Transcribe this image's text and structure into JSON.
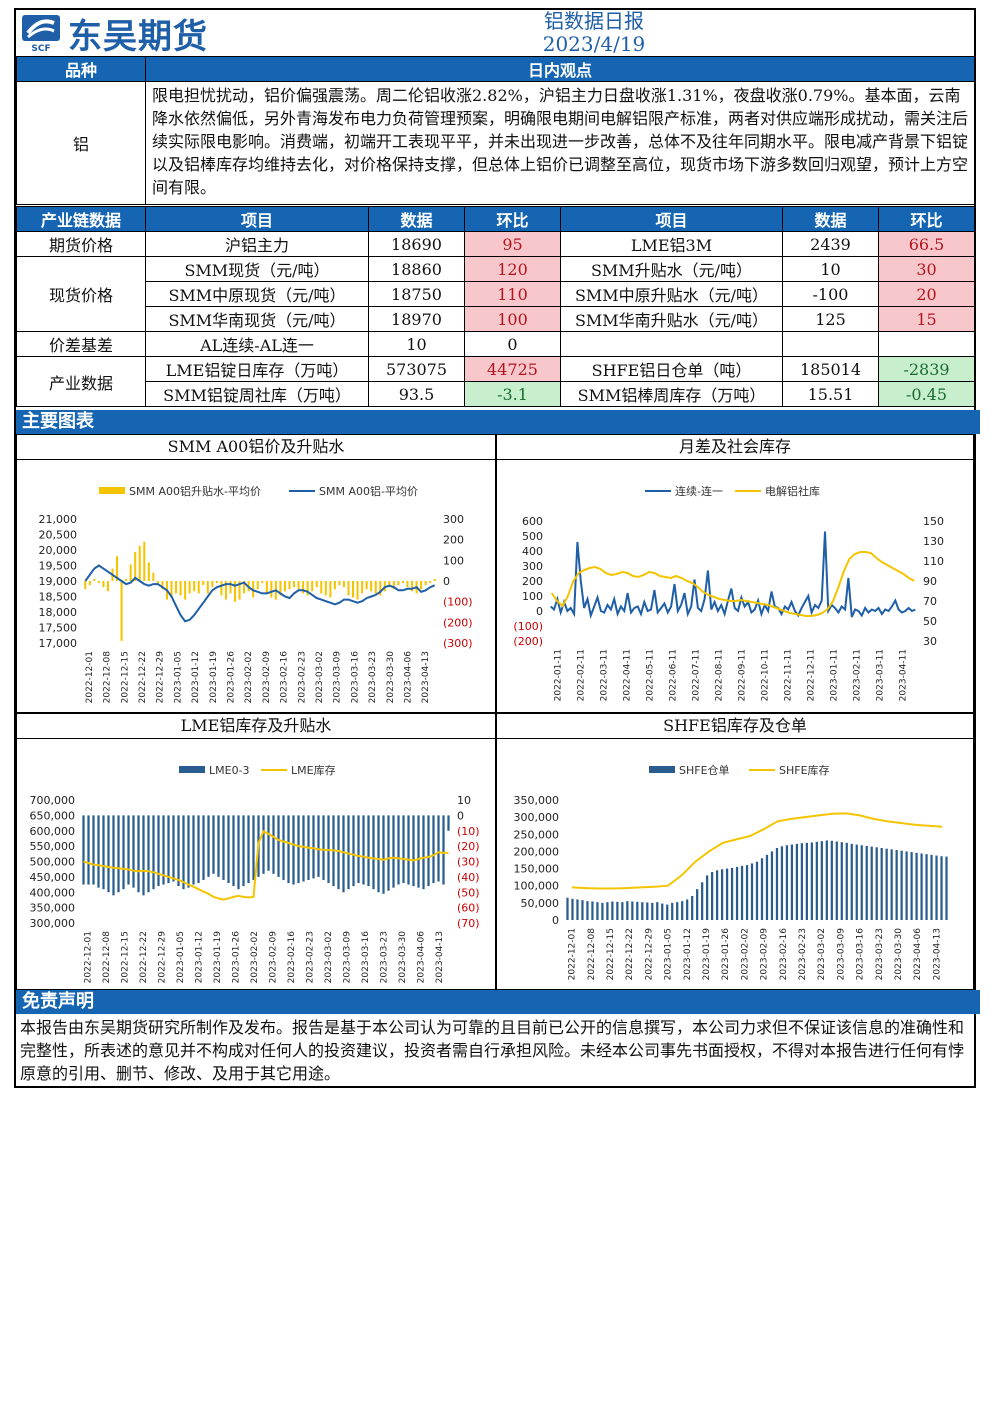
{
  "header": {
    "company": "东吴期货",
    "logo_sub": "SCF",
    "report_title": "铝数据日报",
    "report_date": "2023/4/19"
  },
  "view": {
    "col_variety": "品种",
    "col_view": "日内观点",
    "variety": "铝",
    "text": "限电担忧扰动，铝价偏强震荡。周二伦铝收涨2.82%，沪铝主力日盘收涨1.31%，夜盘收涨0.79%。基本面，云南降水依然偏低，另外青海发布电力负荷管理预案，明确限电期间电解铝限产标准，两者对供应端形成扰动，需关注后续实际限电影响。消费端，初端开工表现平平，并未出现进一步改善，总体不及往年同期水平。限电减产背景下铝锭以及铝棒库存均维持去化，对价格保持支撑，但总体上铝价已调整至高位，现货市场下游多数回归观望，预计上方空间有限。"
  },
  "table": {
    "headers": [
      "产业链数据",
      "项目",
      "数据",
      "环比",
      "项目",
      "数据",
      "环比"
    ],
    "rows": [
      {
        "group": "期货价格",
        "span": 1,
        "item1": "沪铝主力",
        "val1": "18690",
        "chg1": "95",
        "s1": "pos",
        "item2": "LME铝3M",
        "val2": "2439",
        "chg2": "66.5",
        "s2": "pos"
      },
      {
        "group": "现货价格",
        "span": 3,
        "item1": "SMM现货（元/吨）",
        "val1": "18860",
        "chg1": "120",
        "s1": "pos",
        "item2": "SMM升贴水（元/吨）",
        "val2": "10",
        "chg2": "30",
        "s2": "pos"
      },
      {
        "group": "",
        "span": 0,
        "item1": "SMM中原现货（元/吨）",
        "val1": "18750",
        "chg1": "110",
        "s1": "pos",
        "item2": "SMM中原升贴水（元/吨）",
        "val2": "-100",
        "chg2": "20",
        "s2": "pos"
      },
      {
        "group": "",
        "span": 0,
        "item1": "SMM华南现货（元/吨）",
        "val1": "18970",
        "chg1": "100",
        "s1": "pos",
        "item2": "SMM华南升贴水（元/吨）",
        "val2": "125",
        "chg2": "15",
        "s2": "pos"
      },
      {
        "group": "价差基差",
        "span": 1,
        "item1": "AL连续-AL连一",
        "val1": "10",
        "chg1": "0",
        "s1": "",
        "item2": "",
        "val2": "",
        "chg2": "",
        "s2": ""
      },
      {
        "group": "产业数据",
        "span": 2,
        "item1": "LME铝锭日库存（万吨）",
        "val1": "573075",
        "chg1": "44725",
        "s1": "pos",
        "item2": "SHFE铝日仓单（吨）",
        "val2": "185014",
        "chg2": "-2839",
        "s2": "neg"
      },
      {
        "group": "",
        "span": 0,
        "item1": "SMM铝锭周社库（万吨）",
        "val1": "93.5",
        "chg1": "-3.1",
        "s1": "neg",
        "item2": "SMM铝棒周库存（万吨）",
        "val2": "15.51",
        "chg2": "-0.45",
        "s2": "neg"
      }
    ]
  },
  "charts_section_title": "主要图表",
  "chart_data": [
    {
      "type": "line",
      "title": "SMM A00铝价及升贴水",
      "series": [
        {
          "name": "SMM A00铝升贴水-平均价",
          "kind": "bar",
          "axis": "right",
          "color": "#f5c400",
          "values": [
            -40,
            -20,
            10,
            -10,
            -30,
            -50,
            60,
            120,
            -290,
            10,
            80,
            140,
            170,
            190,
            90,
            40,
            -10,
            -40,
            -90,
            -80,
            -60,
            -70,
            -90,
            -60,
            -50,
            -60,
            -20,
            -60,
            -30,
            -10,
            -70,
            -90,
            -60,
            -100,
            -90,
            -60,
            -50,
            -80,
            -40,
            -10,
            -60,
            -80,
            -90,
            -70,
            -50,
            -40,
            -30,
            -40,
            -60,
            -70,
            -50,
            -30,
            -60,
            -70,
            -80,
            -40,
            -20,
            -30,
            -70,
            -80,
            -90,
            -60,
            -40,
            -50,
            -60,
            -70,
            -50,
            -30,
            -40,
            -20,
            -10,
            -30,
            -50,
            -60,
            -40,
            -20,
            -10,
            10
          ]
        },
        {
          "name": "SMM A00铝-平均价",
          "kind": "line",
          "axis": "left",
          "color": "#1f5fa8",
          "values": [
            19000,
            19200,
            19400,
            19500,
            19400,
            19300,
            19200,
            19100,
            19000,
            18900,
            18950,
            19100,
            19000,
            18900,
            18850,
            18900,
            18900,
            18800,
            18700,
            18500,
            18200,
            17900,
            17700,
            17750,
            17900,
            18100,
            18300,
            18500,
            18700,
            18800,
            18850,
            18900,
            18900,
            18850,
            18900,
            18950,
            18800,
            18700,
            18650,
            18600,
            18600,
            18650,
            18700,
            18600,
            18500,
            18450,
            18600,
            18700,
            18700,
            18650,
            18550,
            18450,
            18400,
            18350,
            18300,
            18250,
            18300,
            18400,
            18400,
            18350,
            18300,
            18350,
            18450,
            18500,
            18550,
            18650,
            18800,
            18850,
            18800,
            18700,
            18700,
            18750,
            18750,
            18800,
            18650,
            18700,
            18800,
            18860
          ]
        }
      ],
      "x_ticks": [
        "2022-12-01",
        "2022-12-08",
        "2022-12-15",
        "2022-12-22",
        "2022-12-29",
        "2023-01-05",
        "2023-01-12",
        "2023-01-19",
        "2023-01-26",
        "2023-02-02",
        "2023-02-09",
        "2023-02-16",
        "2023-02-23",
        "2023-03-02",
        "2023-03-09",
        "2023-03-16",
        "2023-03-23",
        "2023-03-30",
        "2023-04-06",
        "2023-04-13"
      ],
      "y_left_ticks": [
        "21,000",
        "20,500",
        "20,000",
        "19,500",
        "19,000",
        "18,500",
        "18,000",
        "17,500",
        "17,000"
      ],
      "y_right_ticks": [
        "300",
        "200",
        "100",
        "0",
        "(100)",
        "(200)",
        "(300)"
      ],
      "ylim_left": [
        17000,
        21000
      ],
      "ylim_right": [
        -300,
        300
      ]
    },
    {
      "type": "line",
      "title": "月差及社会库存",
      "series": [
        {
          "name": "连续-连一",
          "kind": "line",
          "axis": "left",
          "color": "#1f5fa8",
          "values": [
            30,
            10,
            80,
            -10,
            60,
            0,
            20,
            -20,
            460,
            200,
            20,
            80,
            -30,
            30,
            90,
            0,
            -10,
            40,
            10,
            80,
            -20,
            30,
            0,
            120,
            -10,
            20,
            30,
            -20,
            60,
            0,
            10,
            140,
            -10,
            20,
            50,
            -10,
            30,
            180,
            0,
            40,
            120,
            -20,
            30,
            210,
            20,
            0,
            80,
            270,
            10,
            60,
            0,
            40,
            -20,
            70,
            150,
            20,
            0,
            90,
            30,
            60,
            -10,
            10,
            70,
            -20,
            40,
            0,
            130,
            30,
            20,
            -20,
            30,
            10,
            60,
            0,
            -30,
            20,
            60,
            100,
            -10,
            40,
            20,
            70,
            530,
            0,
            40,
            20,
            -10,
            30,
            10,
            220,
            -40,
            10,
            0,
            -30,
            20,
            -10,
            10,
            0,
            20,
            -20,
            10,
            0,
            30,
            70,
            10,
            -10,
            0,
            20,
            0,
            10
          ]
        },
        {
          "name": "电解铝社库",
          "kind": "line",
          "axis": "right",
          "color": "#f5c400",
          "values": [
            78,
            70,
            65,
            75,
            90,
            98,
            101,
            103,
            104,
            102,
            98,
            96,
            97,
            99,
            98,
            95,
            94,
            96,
            99,
            98,
            95,
            94,
            93,
            95,
            93,
            90,
            88,
            84,
            79,
            76,
            74,
            72,
            71,
            70,
            70,
            71,
            70,
            69,
            68,
            67,
            66,
            64,
            62,
            60,
            58,
            57,
            56,
            55,
            55,
            56,
            58,
            62,
            70,
            84,
            100,
            112,
            117,
            119,
            119,
            118,
            113,
            109,
            106,
            103,
            100,
            97,
            93,
            90
          ]
        }
      ],
      "x_ticks": [
        "2022-01-11",
        "2022-02-11",
        "2022-03-11",
        "2022-04-11",
        "2022-05-11",
        "2022-06-11",
        "2022-07-11",
        "2022-08-11",
        "2022-09-11",
        "2022-10-11",
        "2022-11-11",
        "2022-12-11",
        "2023-01-11",
        "2023-02-11",
        "2023-03-11",
        "2023-04-11"
      ],
      "y_left_ticks": [
        "600",
        "500",
        "400",
        "300",
        "200",
        "100",
        "0",
        "(100)",
        "(200)"
      ],
      "y_right_ticks": [
        "150",
        "130",
        "110",
        "90",
        "70",
        "50",
        "30"
      ],
      "ylim_left": [
        -200,
        600
      ],
      "ylim_right": [
        30,
        150
      ]
    },
    {
      "type": "line",
      "title": "LME铝库存及升贴水",
      "series": [
        {
          "name": "LME0-3",
          "kind": "bar",
          "axis": "right",
          "color": "#2a5d8f",
          "values": [
            -45,
            -45,
            -45,
            -47,
            -48,
            -50,
            -52,
            -50,
            -48,
            -45,
            -47,
            -50,
            -52,
            -50,
            -48,
            -46,
            -45,
            -44,
            -43,
            -46,
            -48,
            -47,
            -45,
            -44,
            -42,
            -40,
            -38,
            -40,
            -42,
            -44,
            -46,
            -48,
            -46,
            -44,
            -42,
            -40,
            -38,
            -36,
            -38,
            -40,
            -42,
            -44,
            -45,
            -44,
            -43,
            -42,
            -41,
            -40,
            -42,
            -44,
            -46,
            -48,
            -50,
            -48,
            -46,
            -44,
            -45,
            -46,
            -48,
            -50,
            -51,
            -49,
            -47,
            -45,
            -44,
            -45,
            -46,
            -47,
            -48,
            -46,
            -44,
            -43,
            -45,
            -10
          ]
        },
        {
          "name": "LME库存",
          "kind": "line",
          "axis": "left",
          "color": "#f5c400",
          "values": [
            500000,
            495000,
            490000,
            488000,
            485000,
            482000,
            480000,
            478000,
            476000,
            474000,
            470000,
            468000,
            470000,
            468000,
            465000,
            460000,
            455000,
            450000,
            445000,
            440000,
            433000,
            425000,
            418000,
            410000,
            402000,
            395000,
            385000,
            380000,
            376000,
            380000,
            385000,
            388000,
            385000,
            383000,
            385000,
            560000,
            598000,
            590000,
            580000,
            570000,
            565000,
            560000,
            555000,
            550000,
            548000,
            545000,
            543000,
            540000,
            538000,
            537000,
            536000,
            534000,
            530000,
            526000,
            522000,
            518000,
            516000,
            512000,
            510000,
            508000,
            506000,
            510000,
            512000,
            510000,
            508000,
            506000,
            504000,
            508000,
            512000,
            515000,
            520000,
            530000,
            528000,
            528000
          ]
        }
      ],
      "x_ticks": [
        "2022-12-01",
        "2022-12-08",
        "2022-12-15",
        "2022-12-22",
        "2022-12-29",
        "2023-01-05",
        "2023-01-12",
        "2023-01-19",
        "2023-01-26",
        "2023-02-02",
        "2023-02-09",
        "2023-02-16",
        "2023-02-23",
        "2023-03-02",
        "2023-03-09",
        "2023-03-16",
        "2023-03-23",
        "2023-03-30",
        "2023-04-06",
        "2023-04-13"
      ],
      "y_left_ticks": [
        "700,000",
        "650,000",
        "600,000",
        "550,000",
        "500,000",
        "450,000",
        "400,000",
        "350,000",
        "300,000"
      ],
      "y_right_ticks": [
        "10",
        "0",
        "(10)",
        "(20)",
        "(30)",
        "(40)",
        "(50)",
        "(60)",
        "(70)"
      ],
      "ylim_left": [
        300000,
        700000
      ],
      "ylim_right": [
        -70,
        10
      ]
    },
    {
      "type": "line",
      "title": "SHFE铝库存及仓单",
      "series": [
        {
          "name": "SHFE仓单",
          "kind": "bar",
          "axis": "left",
          "color": "#2a5d8f",
          "values": [
            65000,
            62000,
            60000,
            58000,
            55000,
            54000,
            52000,
            50000,
            52000,
            54000,
            53000,
            52000,
            55000,
            54000,
            53000,
            52000,
            51000,
            50000,
            52000,
            48000,
            45000,
            50000,
            52000,
            55000,
            60000,
            70000,
            90000,
            110000,
            130000,
            140000,
            145000,
            148000,
            150000,
            152000,
            155000,
            158000,
            160000,
            165000,
            170000,
            180000,
            190000,
            200000,
            210000,
            215000,
            218000,
            220000,
            222000,
            224000,
            225000,
            226000,
            228000,
            230000,
            232000,
            231000,
            229000,
            227000,
            225000,
            222000,
            220000,
            218000,
            216000,
            214000,
            212000,
            210000,
            208000,
            206000,
            204000,
            202000,
            200000,
            198000,
            196000,
            194000,
            192000,
            190000,
            188000,
            186000,
            185014
          ]
        },
        {
          "name": "SHFE库存",
          "kind": "line",
          "axis": "left",
          "color": "#f5c400",
          "values": [
            95000,
            93000,
            92000,
            92000,
            93000,
            95000,
            97000,
            100000,
            130000,
            170000,
            200000,
            225000,
            235000,
            245000,
            265000,
            288000,
            295000,
            300000,
            305000,
            310000,
            311000,
            305000,
            295000,
            288000,
            283000,
            278000,
            275000,
            272000
          ]
        }
      ],
      "x_ticks": [
        "2022-12-01",
        "2022-12-08",
        "2022-12-15",
        "2022-12-22",
        "2022-12-29",
        "2023-01-05",
        "2023-01-12",
        "2023-01-19",
        "2023-01-26",
        "2023-02-02",
        "2023-02-09",
        "2023-02-16",
        "2023-02-23",
        "2023-03-02",
        "2023-03-09",
        "2023-03-16",
        "2023-03-23",
        "2023-03-30",
        "2023-04-06",
        "2023-04-13"
      ],
      "y_left_ticks": [
        "350,000",
        "300,000",
        "250,000",
        "200,000",
        "150,000",
        "100,000",
        "50,000",
        "0"
      ],
      "ylim_left": [
        0,
        350000
      ]
    }
  ],
  "disclaimer": {
    "title": "免责声明",
    "text": "本报告由东吴期货研究所制作及发布。报告是基于本公司认为可靠的且目前已公开的信息撰写，本公司力求但不保证该信息的准确性和完整性，所表述的意见并不构成对任何人的投资建议，投资者需自行承担风险。未经本公司事先书面授权，不得对本报告进行任何有悖原意的引用、删节、修改、及用于其它用途。"
  }
}
